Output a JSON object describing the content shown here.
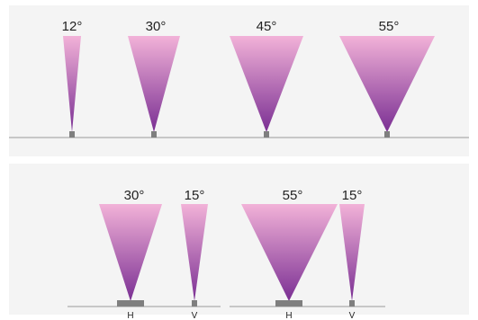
{
  "colors": {
    "beam_top": "#f2b2d8",
    "beam_bottom": "#7a2f93",
    "baseline": "#9a9a9a",
    "base_block": "#7f7f7f",
    "label": "#222222",
    "panel": "#f4f4f4"
  },
  "top_row": {
    "beams": [
      {
        "angle_label": "12°"
      },
      {
        "angle_label": "30°"
      },
      {
        "angle_label": "45°"
      },
      {
        "angle_label": "55°"
      }
    ]
  },
  "bottom_row": {
    "pairs": [
      {
        "h": {
          "angle_label": "30°",
          "axis_label": "H"
        },
        "v": {
          "angle_label": "15°",
          "axis_label": "V"
        }
      },
      {
        "h": {
          "angle_label": "55°",
          "axis_label": "H"
        },
        "v": {
          "angle_label": "15°",
          "axis_label": "V"
        }
      }
    ]
  }
}
